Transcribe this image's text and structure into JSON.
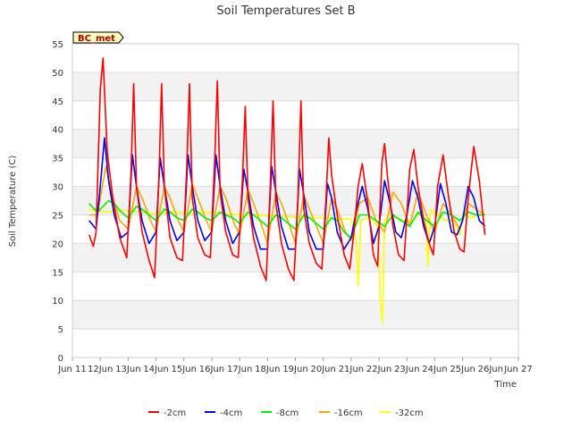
{
  "chart_data": {
    "type": "line",
    "title": "Soil Temperatures Set B",
    "xlabel": "Time",
    "ylabel": "Soil Temperature (C)",
    "badge": "BC_met",
    "ylim": [
      0,
      55
    ],
    "yticks": [
      0,
      5,
      10,
      15,
      20,
      25,
      30,
      35,
      40,
      45,
      50,
      55
    ],
    "xlim": [
      11.0,
      27.0
    ],
    "xticks": [
      {
        "v": 11,
        "label": "Jun 11"
      },
      {
        "v": 12,
        "label": "12Jun"
      },
      {
        "v": 13,
        "label": "13Jun"
      },
      {
        "v": 14,
        "label": "14Jun"
      },
      {
        "v": 15,
        "label": "15Jun"
      },
      {
        "v": 16,
        "label": "16Jun"
      },
      {
        "v": 17,
        "label": "17Jun"
      },
      {
        "v": 18,
        "label": "18Jun"
      },
      {
        "v": 19,
        "label": "19Jun"
      },
      {
        "v": 20,
        "label": "20Jun"
      },
      {
        "v": 21,
        "label": "21Jun"
      },
      {
        "v": 22,
        "label": "22Jun"
      },
      {
        "v": 23,
        "label": "23Jun"
      },
      {
        "v": 24,
        "label": "24Jun"
      },
      {
        "v": 25,
        "label": "25Jun"
      },
      {
        "v": 26,
        "label": "26Jun"
      },
      {
        "v": 27,
        "label": "Jun 27"
      }
    ],
    "grid": true,
    "legend_position": "bottom",
    "series": [
      {
        "name": "-2cm",
        "color": "#ff0000",
        "x": [
          11.6,
          11.75,
          11.85,
          12.0,
          12.1,
          12.25,
          12.45,
          12.7,
          12.95,
          13.1,
          13.2,
          13.3,
          13.5,
          13.75,
          13.95,
          14.1,
          14.2,
          14.3,
          14.5,
          14.75,
          14.95,
          15.1,
          15.2,
          15.3,
          15.5,
          15.75,
          15.95,
          16.1,
          16.2,
          16.3,
          16.5,
          16.75,
          16.95,
          17.1,
          17.2,
          17.3,
          17.5,
          17.75,
          17.95,
          18.1,
          18.2,
          18.3,
          18.5,
          18.75,
          18.95,
          19.1,
          19.2,
          19.3,
          19.5,
          19.75,
          19.95,
          20.1,
          20.2,
          20.3,
          20.5,
          20.75,
          20.95,
          21.1,
          21.25,
          21.4,
          21.6,
          21.8,
          21.95,
          22.1,
          22.2,
          22.3,
          22.5,
          22.7,
          22.9,
          23.1,
          23.25,
          23.4,
          23.6,
          23.8,
          23.95,
          24.1,
          24.3,
          24.5,
          24.7,
          24.9,
          25.05,
          25.2,
          25.4,
          25.6,
          25.8
        ],
        "y": [
          21.5,
          19.5,
          22,
          47,
          52.5,
          36,
          28,
          21,
          17.5,
          32,
          48,
          30,
          22,
          17,
          14,
          31,
          48,
          30,
          21,
          17.5,
          17,
          33,
          48,
          28,
          21,
          18,
          17.5,
          34,
          48.5,
          29,
          22,
          18,
          17.5,
          31,
          44,
          28,
          21,
          16,
          13.5,
          30,
          45,
          27,
          20,
          15.5,
          13.5,
          29,
          45,
          26,
          20,
          16.5,
          15.5,
          28,
          38.5,
          32,
          25,
          18,
          15.5,
          22,
          30,
          34,
          27,
          18,
          16,
          34,
          37.5,
          32,
          23,
          18,
          17,
          33,
          36.5,
          30,
          24,
          20,
          18,
          30,
          35.5,
          28,
          22,
          19,
          18.5,
          28,
          37,
          31,
          21.5
        ]
      },
      {
        "name": "-4cm",
        "color": "#0000ee",
        "x": [
          11.6,
          11.85,
          12.0,
          12.15,
          12.3,
          12.5,
          12.75,
          13.0,
          13.15,
          13.3,
          13.5,
          13.75,
          14.0,
          14.15,
          14.3,
          14.5,
          14.75,
          15.0,
          15.15,
          15.3,
          15.5,
          15.75,
          16.0,
          16.15,
          16.3,
          16.5,
          16.75,
          17.0,
          17.15,
          17.3,
          17.5,
          17.75,
          18.0,
          18.15,
          18.3,
          18.5,
          18.75,
          19.0,
          19.15,
          19.3,
          19.5,
          19.75,
          20.0,
          20.15,
          20.3,
          20.5,
          20.75,
          21.0,
          21.2,
          21.4,
          21.6,
          21.8,
          22.0,
          22.2,
          22.4,
          22.6,
          22.8,
          23.0,
          23.2,
          23.4,
          23.6,
          23.8,
          24.0,
          24.2,
          24.4,
          24.6,
          24.8,
          25.0,
          25.2,
          25.4,
          25.6,
          25.8
        ],
        "y": [
          24,
          22.5,
          30,
          38.5,
          31,
          25,
          21,
          22,
          35.5,
          30,
          24,
          20,
          22,
          35,
          30,
          24,
          20.5,
          22,
          35.5,
          30,
          24,
          20.5,
          22,
          35.5,
          30,
          24,
          20,
          22,
          33,
          29,
          23,
          19,
          19,
          33.5,
          29,
          23,
          19,
          19,
          33,
          28.5,
          22,
          19,
          19,
          30.5,
          28,
          22,
          19,
          21,
          26,
          30,
          26,
          20,
          23,
          31,
          27,
          22,
          21,
          25,
          31,
          28,
          23,
          20,
          23,
          30.5,
          27,
          22,
          21.5,
          24,
          30,
          28,
          24,
          23
        ]
      },
      {
        "name": "-8cm",
        "color": "#00ee00",
        "x": [
          11.6,
          11.9,
          12.3,
          12.5,
          12.75,
          13.0,
          13.3,
          13.5,
          13.75,
          14.0,
          14.3,
          14.5,
          14.75,
          15.0,
          15.3,
          15.5,
          15.75,
          16.0,
          16.3,
          16.5,
          16.75,
          17.0,
          17.3,
          17.5,
          17.75,
          18.0,
          18.3,
          18.5,
          18.75,
          19.0,
          19.3,
          19.5,
          19.75,
          20.0,
          20.3,
          20.5,
          20.75,
          21.0,
          21.3,
          21.6,
          21.9,
          22.2,
          22.5,
          22.8,
          23.1,
          23.4,
          23.7,
          24.0,
          24.3,
          24.6,
          24.9,
          25.2,
          25.5,
          25.8
        ],
        "y": [
          27,
          25.5,
          27.5,
          27,
          25.5,
          24.5,
          26.5,
          26,
          25,
          24,
          26,
          25.5,
          24.5,
          24,
          26,
          25.5,
          24.5,
          24,
          25.5,
          25,
          24.5,
          23.5,
          25.5,
          25,
          24,
          23,
          25,
          24.5,
          23.5,
          22.5,
          25,
          24.5,
          23.5,
          22.5,
          24.5,
          24,
          22,
          21,
          25,
          25,
          24,
          23,
          25,
          24,
          23,
          25.5,
          24,
          23,
          25.5,
          25,
          24,
          25.5,
          25,
          25
        ]
      },
      {
        "name": "-16cm",
        "color": "#ffa500",
        "x": [
          11.6,
          11.9,
          12.2,
          12.4,
          12.7,
          13.0,
          13.3,
          13.5,
          13.8,
          14.0,
          14.3,
          14.5,
          14.8,
          15.0,
          15.3,
          15.5,
          15.8,
          16.0,
          16.3,
          16.5,
          16.8,
          17.0,
          17.3,
          17.5,
          17.8,
          18.0,
          18.3,
          18.5,
          18.8,
          19.0,
          19.3,
          19.5,
          19.8,
          20.0,
          20.3,
          20.5,
          20.8,
          21.0,
          21.3,
          21.6,
          21.9,
          22.2,
          22.5,
          22.8,
          23.1,
          23.4,
          23.7,
          24.0,
          24.3,
          24.6,
          24.9,
          25.2,
          25.5,
          25.8
        ],
        "y": [
          25,
          25,
          33.5,
          29,
          24,
          22.5,
          30,
          28,
          24,
          22,
          30,
          28,
          24,
          22,
          30.5,
          28,
          24,
          22,
          30,
          28,
          23.5,
          21.5,
          29.5,
          27,
          23,
          20,
          29,
          27,
          23,
          20,
          28.5,
          26,
          22.5,
          20,
          28,
          26,
          22,
          20.5,
          27,
          28,
          24,
          22,
          29,
          27,
          23,
          29,
          25,
          22,
          27,
          25,
          22.5,
          27,
          26,
          25
        ]
      },
      {
        "name": "-32cm",
        "color": "#ffff00",
        "x": [
          11.6,
          12.2,
          12.8,
          13.4,
          14.0,
          14.6,
          15.2,
          15.8,
          16.4,
          17.0,
          17.6,
          18.2,
          18.8,
          19.4,
          20.0,
          20.6,
          21.0,
          21.2,
          21.25,
          21.35,
          21.6,
          21.8,
          21.95,
          22.05,
          22.12,
          22.2,
          22.35,
          22.6,
          22.9,
          23.2,
          23.5,
          23.7,
          23.75,
          23.85,
          24.1,
          24.4,
          24.7,
          24.9,
          25.0,
          25.3,
          25.6,
          25.8
        ],
        "y": [
          26,
          25.5,
          25.8,
          25.5,
          25.2,
          25.5,
          25.3,
          25.5,
          25.3,
          25,
          25,
          24.8,
          24.7,
          24.5,
          24.5,
          24.3,
          24.3,
          20,
          12.5,
          24,
          24.5,
          24,
          23,
          10,
          6,
          24,
          25,
          24.5,
          24,
          24,
          25.5,
          24,
          16,
          26,
          25,
          24,
          24,
          21.5,
          25,
          24.5,
          25,
          25
        ]
      }
    ]
  }
}
